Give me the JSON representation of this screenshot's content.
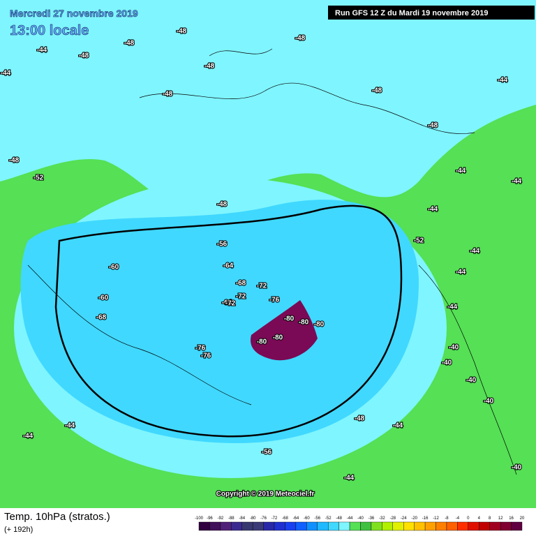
{
  "header": {
    "date": "Mercredi 27 novembre 2019",
    "time": "13:00 locale",
    "run": "Run GFS 12 Z du Mardi 19 novembre 2019"
  },
  "copyright": "Copyright © 2019 Meteociel.fr",
  "footer": {
    "title": "Temp. 10hPa (stratos.)",
    "lead": "(+ 192h)"
  },
  "scale": [
    "-100",
    "-96",
    "-92",
    "-88",
    "-84",
    "-80",
    "-76",
    "-72",
    "-68",
    "-64",
    "-60",
    "-56",
    "-52",
    "-48",
    "-44",
    "-40",
    "-36",
    "-32",
    "-28",
    "-24",
    "-20",
    "-16",
    "-12",
    "-8",
    "-4",
    "0",
    "4",
    "8",
    "12",
    "16",
    "20"
  ],
  "map_labels": [
    "-48",
    "-48",
    "-48",
    "-48",
    "-48",
    "-48",
    "-48",
    "-48",
    "-48",
    "-44",
    "-44",
    "-44",
    "-44",
    "-44",
    "-44",
    "-44",
    "-44",
    "-48",
    "-52",
    "-52",
    "-56",
    "-60",
    "-64",
    "-60",
    "-64",
    "-68",
    "-68",
    "-72",
    "-72",
    "-72",
    "-76",
    "-76",
    "-76",
    "-80",
    "-80",
    "-80",
    "-80",
    "-80",
    "-56",
    "-48",
    "-44",
    "-44",
    "-40",
    "-40",
    "-40",
    "-40",
    "-44",
    "-44",
    "-44",
    "-40"
  ]
}
